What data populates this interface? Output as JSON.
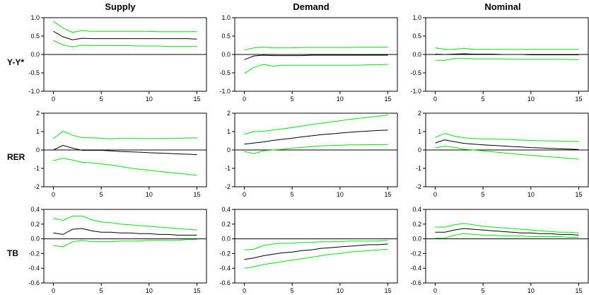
{
  "column_titles": [
    "Supply",
    "Demand",
    "Nominal"
  ],
  "row_labels": [
    "Y-Y*",
    "RER",
    "TB"
  ],
  "colors": {
    "band": "#00e600",
    "response": "#000000",
    "zero_line": "#000000"
  },
  "chart_data": [
    {
      "type": "line",
      "row": "Y-Y*",
      "column": "Supply",
      "x": [
        0,
        1,
        2,
        3,
        4,
        5,
        6,
        7,
        8,
        9,
        10,
        11,
        12,
        13,
        14,
        15
      ],
      "xlim": [
        -1,
        16
      ],
      "xticks": [
        0,
        5,
        10,
        15
      ],
      "ylim": [
        -1.0,
        1.0
      ],
      "yticks": [
        "-1.0",
        "-0.5",
        "0.0",
        "0.5",
        "1.0"
      ],
      "series": [
        {
          "role": "upper",
          "values": [
            0.9,
            0.72,
            0.6,
            0.65,
            0.63,
            0.63,
            0.63,
            0.63,
            0.63,
            0.63,
            0.63,
            0.62,
            0.62,
            0.62,
            0.62,
            0.62
          ]
        },
        {
          "role": "response",
          "values": [
            0.63,
            0.48,
            0.4,
            0.44,
            0.43,
            0.43,
            0.43,
            0.43,
            0.43,
            0.43,
            0.43,
            0.43,
            0.43,
            0.43,
            0.43,
            0.42
          ]
        },
        {
          "role": "lower",
          "values": [
            0.38,
            0.26,
            0.21,
            0.25,
            0.24,
            0.24,
            0.24,
            0.24,
            0.24,
            0.23,
            0.23,
            0.23,
            0.22,
            0.22,
            0.22,
            0.22
          ]
        }
      ]
    },
    {
      "type": "line",
      "row": "Y-Y*",
      "column": "Demand",
      "x": [
        0,
        1,
        2,
        3,
        4,
        5,
        6,
        7,
        8,
        9,
        10,
        11,
        12,
        13,
        14,
        15
      ],
      "xlim": [
        -1,
        16
      ],
      "xticks": [
        0,
        5,
        10,
        15
      ],
      "ylim": [
        -1.0,
        1.0
      ],
      "yticks": [
        "-1.0",
        "-0.5",
        "0.0",
        "0.5",
        "1.0"
      ],
      "series": [
        {
          "role": "upper",
          "values": [
            0.12,
            0.18,
            0.2,
            0.18,
            0.18,
            0.18,
            0.19,
            0.19,
            0.19,
            0.19,
            0.19,
            0.19,
            0.2,
            0.2,
            0.2,
            0.2
          ]
        },
        {
          "role": "response",
          "values": [
            -0.14,
            -0.04,
            -0.02,
            -0.03,
            -0.03,
            -0.03,
            -0.03,
            -0.02,
            -0.02,
            -0.02,
            -0.02,
            -0.02,
            -0.02,
            -0.02,
            -0.02,
            -0.02
          ]
        },
        {
          "role": "lower",
          "values": [
            -0.52,
            -0.35,
            -0.27,
            -0.32,
            -0.29,
            -0.29,
            -0.29,
            -0.29,
            -0.29,
            -0.29,
            -0.29,
            -0.29,
            -0.29,
            -0.28,
            -0.28,
            -0.27
          ]
        }
      ]
    },
    {
      "type": "line",
      "row": "Y-Y*",
      "column": "Nominal",
      "x": [
        0,
        1,
        2,
        3,
        4,
        5,
        6,
        7,
        8,
        9,
        10,
        11,
        12,
        13,
        14,
        15
      ],
      "xlim": [
        -1,
        16
      ],
      "xticks": [
        0,
        5,
        10,
        15
      ],
      "ylim": [
        -1.0,
        1.0
      ],
      "yticks": [
        "-1.0",
        "-0.5",
        "0.0",
        "0.5",
        "1.0"
      ],
      "series": [
        {
          "role": "upper",
          "values": [
            0.18,
            0.14,
            0.14,
            0.17,
            0.14,
            0.14,
            0.14,
            0.14,
            0.14,
            0.14,
            0.14,
            0.14,
            0.14,
            0.14,
            0.14,
            0.14
          ]
        },
        {
          "role": "response",
          "values": [
            0.01,
            0.0,
            0.01,
            0.02,
            0.01,
            0.01,
            0.01,
            0.0,
            0.0,
            0.0,
            -0.01,
            -0.01,
            -0.01,
            -0.01,
            -0.01,
            -0.01
          ]
        },
        {
          "role": "lower",
          "values": [
            -0.16,
            -0.16,
            -0.11,
            -0.11,
            -0.12,
            -0.12,
            -0.12,
            -0.12,
            -0.13,
            -0.13,
            -0.13,
            -0.13,
            -0.13,
            -0.13,
            -0.14,
            -0.14
          ]
        }
      ]
    },
    {
      "type": "line",
      "row": "RER",
      "column": "Supply",
      "x": [
        0,
        1,
        2,
        3,
        4,
        5,
        6,
        7,
        8,
        9,
        10,
        11,
        12,
        13,
        14,
        15
      ],
      "xlim": [
        -1,
        16
      ],
      "xticks": [
        0,
        5,
        10,
        15
      ],
      "ylim": [
        -2,
        2
      ],
      "yticks": [
        "-2",
        "-1",
        "0",
        "1",
        "2"
      ],
      "series": [
        {
          "role": "upper",
          "values": [
            0.62,
            1.02,
            0.8,
            0.68,
            0.66,
            0.64,
            0.6,
            0.64,
            0.64,
            0.63,
            0.62,
            0.63,
            0.63,
            0.64,
            0.65,
            0.66
          ]
        },
        {
          "role": "response",
          "values": [
            0.0,
            0.25,
            0.1,
            -0.02,
            -0.02,
            -0.02,
            -0.05,
            -0.08,
            -0.1,
            -0.12,
            -0.15,
            -0.17,
            -0.19,
            -0.21,
            -0.23,
            -0.25
          ]
        },
        {
          "role": "lower",
          "values": [
            -0.58,
            -0.45,
            -0.55,
            -0.66,
            -0.7,
            -0.76,
            -0.82,
            -0.9,
            -0.98,
            -1.05,
            -1.1,
            -1.16,
            -1.22,
            -1.27,
            -1.32,
            -1.38
          ]
        }
      ]
    },
    {
      "type": "line",
      "row": "RER",
      "column": "Demand",
      "x": [
        0,
        1,
        2,
        3,
        4,
        5,
        6,
        7,
        8,
        9,
        10,
        11,
        12,
        13,
        14,
        15
      ],
      "xlim": [
        -1,
        16
      ],
      "xticks": [
        0,
        5,
        10,
        15
      ],
      "ylim": [
        -2,
        2
      ],
      "yticks": [
        "-2",
        "-1",
        "0",
        "1",
        "2"
      ],
      "series": [
        {
          "role": "upper",
          "values": [
            0.85,
            1.0,
            1.02,
            1.08,
            1.15,
            1.22,
            1.3,
            1.38,
            1.45,
            1.52,
            1.59,
            1.66,
            1.72,
            1.78,
            1.84,
            1.9
          ]
        },
        {
          "role": "response",
          "values": [
            0.32,
            0.38,
            0.44,
            0.52,
            0.58,
            0.64,
            0.71,
            0.77,
            0.83,
            0.87,
            0.92,
            0.96,
            1.0,
            1.03,
            1.06,
            1.08
          ]
        },
        {
          "role": "lower",
          "values": [
            -0.08,
            -0.2,
            -0.05,
            0.0,
            0.04,
            0.1,
            0.14,
            0.18,
            0.22,
            0.24,
            0.26,
            0.28,
            0.28,
            0.29,
            0.29,
            0.3
          ]
        }
      ]
    },
    {
      "type": "line",
      "row": "RER",
      "column": "Nominal",
      "x": [
        0,
        1,
        2,
        3,
        4,
        5,
        6,
        7,
        8,
        9,
        10,
        11,
        12,
        13,
        14,
        15
      ],
      "xlim": [
        -1,
        16
      ],
      "xticks": [
        0,
        5,
        10,
        15
      ],
      "ylim": [
        -2,
        2
      ],
      "yticks": [
        "-2",
        "-1",
        "0",
        "1",
        "2"
      ],
      "series": [
        {
          "role": "upper",
          "values": [
            0.68,
            0.9,
            0.75,
            0.66,
            0.62,
            0.6,
            0.6,
            0.58,
            0.56,
            0.54,
            0.52,
            0.5,
            0.49,
            0.48,
            0.47,
            0.46
          ]
        },
        {
          "role": "response",
          "values": [
            0.38,
            0.55,
            0.45,
            0.36,
            0.32,
            0.28,
            0.25,
            0.22,
            0.19,
            0.16,
            0.13,
            0.11,
            0.09,
            0.07,
            0.05,
            0.03
          ]
        },
        {
          "role": "lower",
          "values": [
            0.12,
            0.2,
            0.14,
            0.05,
            0.0,
            -0.05,
            -0.1,
            -0.15,
            -0.2,
            -0.25,
            -0.29,
            -0.33,
            -0.37,
            -0.41,
            -0.45,
            -0.5
          ]
        }
      ]
    },
    {
      "type": "line",
      "row": "TB",
      "column": "Supply",
      "x": [
        0,
        1,
        2,
        3,
        4,
        5,
        6,
        7,
        8,
        9,
        10,
        11,
        12,
        13,
        14,
        15
      ],
      "xlim": [
        -1,
        16
      ],
      "xticks": [
        0,
        5,
        10,
        15
      ],
      "ylim": [
        -0.6,
        0.4
      ],
      "yticks": [
        "-0.6",
        "-0.4",
        "-0.2",
        "0.0",
        "0.2",
        "0.4"
      ],
      "series": [
        {
          "role": "upper",
          "values": [
            0.28,
            0.25,
            0.31,
            0.31,
            0.26,
            0.23,
            0.22,
            0.2,
            0.19,
            0.18,
            0.17,
            0.16,
            0.15,
            0.14,
            0.13,
            0.12
          ]
        },
        {
          "role": "response",
          "values": [
            0.08,
            0.06,
            0.13,
            0.14,
            0.11,
            0.09,
            0.09,
            0.08,
            0.08,
            0.07,
            0.07,
            0.06,
            0.06,
            0.05,
            0.05,
            0.05
          ]
        },
        {
          "role": "lower",
          "values": [
            -0.09,
            -0.11,
            -0.04,
            -0.02,
            -0.04,
            -0.04,
            -0.04,
            -0.03,
            -0.03,
            -0.03,
            -0.02,
            -0.02,
            -0.02,
            -0.02,
            -0.01,
            -0.01
          ]
        }
      ]
    },
    {
      "type": "line",
      "row": "TB",
      "column": "Demand",
      "x": [
        0,
        1,
        2,
        3,
        4,
        5,
        6,
        7,
        8,
        9,
        10,
        11,
        12,
        13,
        14,
        15
      ],
      "xlim": [
        -1,
        16
      ],
      "xticks": [
        0,
        5,
        10,
        15
      ],
      "ylim": [
        -0.6,
        0.4
      ],
      "yticks": [
        "-0.6",
        "-0.4",
        "-0.2",
        "0.0",
        "0.2",
        "0.4"
      ],
      "series": [
        {
          "role": "upper",
          "values": [
            -0.15,
            -0.14,
            -0.09,
            -0.07,
            -0.06,
            -0.06,
            -0.05,
            -0.05,
            -0.04,
            -0.04,
            -0.04,
            -0.03,
            -0.03,
            -0.03,
            -0.03,
            -0.02
          ]
        },
        {
          "role": "response",
          "values": [
            -0.28,
            -0.26,
            -0.23,
            -0.21,
            -0.19,
            -0.18,
            -0.16,
            -0.15,
            -0.13,
            -0.12,
            -0.11,
            -0.1,
            -0.09,
            -0.08,
            -0.08,
            -0.07
          ]
        },
        {
          "role": "lower",
          "values": [
            -0.4,
            -0.38,
            -0.35,
            -0.33,
            -0.31,
            -0.29,
            -0.27,
            -0.25,
            -0.23,
            -0.21,
            -0.2,
            -0.18,
            -0.17,
            -0.16,
            -0.15,
            -0.14
          ]
        }
      ]
    },
    {
      "type": "line",
      "row": "TB",
      "column": "Nominal",
      "x": [
        0,
        1,
        2,
        3,
        4,
        5,
        6,
        7,
        8,
        9,
        10,
        11,
        12,
        13,
        14,
        15
      ],
      "xlim": [
        -1,
        16
      ],
      "xticks": [
        0,
        5,
        10,
        15
      ],
      "ylim": [
        -0.6,
        0.4
      ],
      "yticks": [
        "-0.6",
        "-0.4",
        "-0.2",
        "0.0",
        "0.2",
        "0.4"
      ],
      "series": [
        {
          "role": "upper",
          "values": [
            0.16,
            0.16,
            0.19,
            0.21,
            0.19,
            0.17,
            0.16,
            0.15,
            0.14,
            0.13,
            0.12,
            0.11,
            0.1,
            0.09,
            0.09,
            0.08
          ]
        },
        {
          "role": "response",
          "values": [
            0.09,
            0.09,
            0.12,
            0.14,
            0.13,
            0.12,
            0.11,
            0.1,
            0.09,
            0.08,
            0.08,
            0.07,
            0.07,
            0.06,
            0.06,
            0.05
          ]
        },
        {
          "role": "lower",
          "values": [
            0.01,
            0.01,
            0.05,
            0.07,
            0.06,
            0.05,
            0.05,
            0.04,
            0.04,
            0.04,
            0.03,
            0.03,
            0.03,
            0.03,
            0.02,
            0.02
          ]
        }
      ]
    }
  ]
}
